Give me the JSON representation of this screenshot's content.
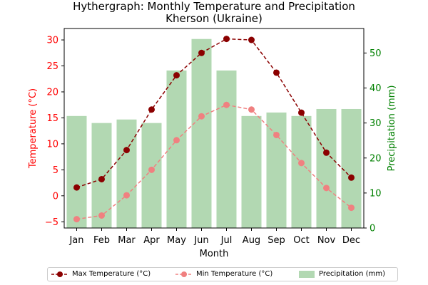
{
  "chart_data": {
    "type": "bar+line",
    "title": "Hythergraph: Monthly Temperature and Precipitation",
    "subtitle": "Kherson (Ukraine)",
    "xlabel": "Month",
    "ylabel_left": "Temperature (°C)",
    "ylabel_right": "Precipitation (mm)",
    "categories": [
      "Jan",
      "Feb",
      "Mar",
      "Apr",
      "May",
      "Jun",
      "Jul",
      "Aug",
      "Sep",
      "Oct",
      "Nov",
      "Dec"
    ],
    "ylim_left": [
      -6.2,
      32.2
    ],
    "ylim_right": [
      0,
      57
    ],
    "yticks_left": [
      -5,
      0,
      5,
      10,
      15,
      20,
      25,
      30
    ],
    "yticks_right": [
      0,
      10,
      20,
      30,
      40,
      50
    ],
    "series": [
      {
        "name": "Max Temperature (°C)",
        "kind": "line",
        "axis": "left",
        "color": "#8b0000",
        "values": [
          1.6,
          3.2,
          8.8,
          16.6,
          23.2,
          27.5,
          30.2,
          30.0,
          23.7,
          16.0,
          8.3,
          3.5
        ]
      },
      {
        "name": "Min Temperature (°C)",
        "kind": "line",
        "axis": "left",
        "color": "#f08080",
        "values": [
          -4.5,
          -3.8,
          0.1,
          5.0,
          10.7,
          15.3,
          17.5,
          16.6,
          11.7,
          6.3,
          1.5,
          -2.3
        ]
      },
      {
        "name": "Precipitation (mm)",
        "kind": "bar",
        "axis": "right",
        "color": "#b2d8b2",
        "values": [
          32,
          30,
          31,
          30,
          45,
          54,
          45,
          32,
          33,
          32,
          34,
          34
        ]
      }
    ],
    "left_axis_color": "#ff0000",
    "right_axis_color": "#008000",
    "legend_position": "bottom"
  }
}
